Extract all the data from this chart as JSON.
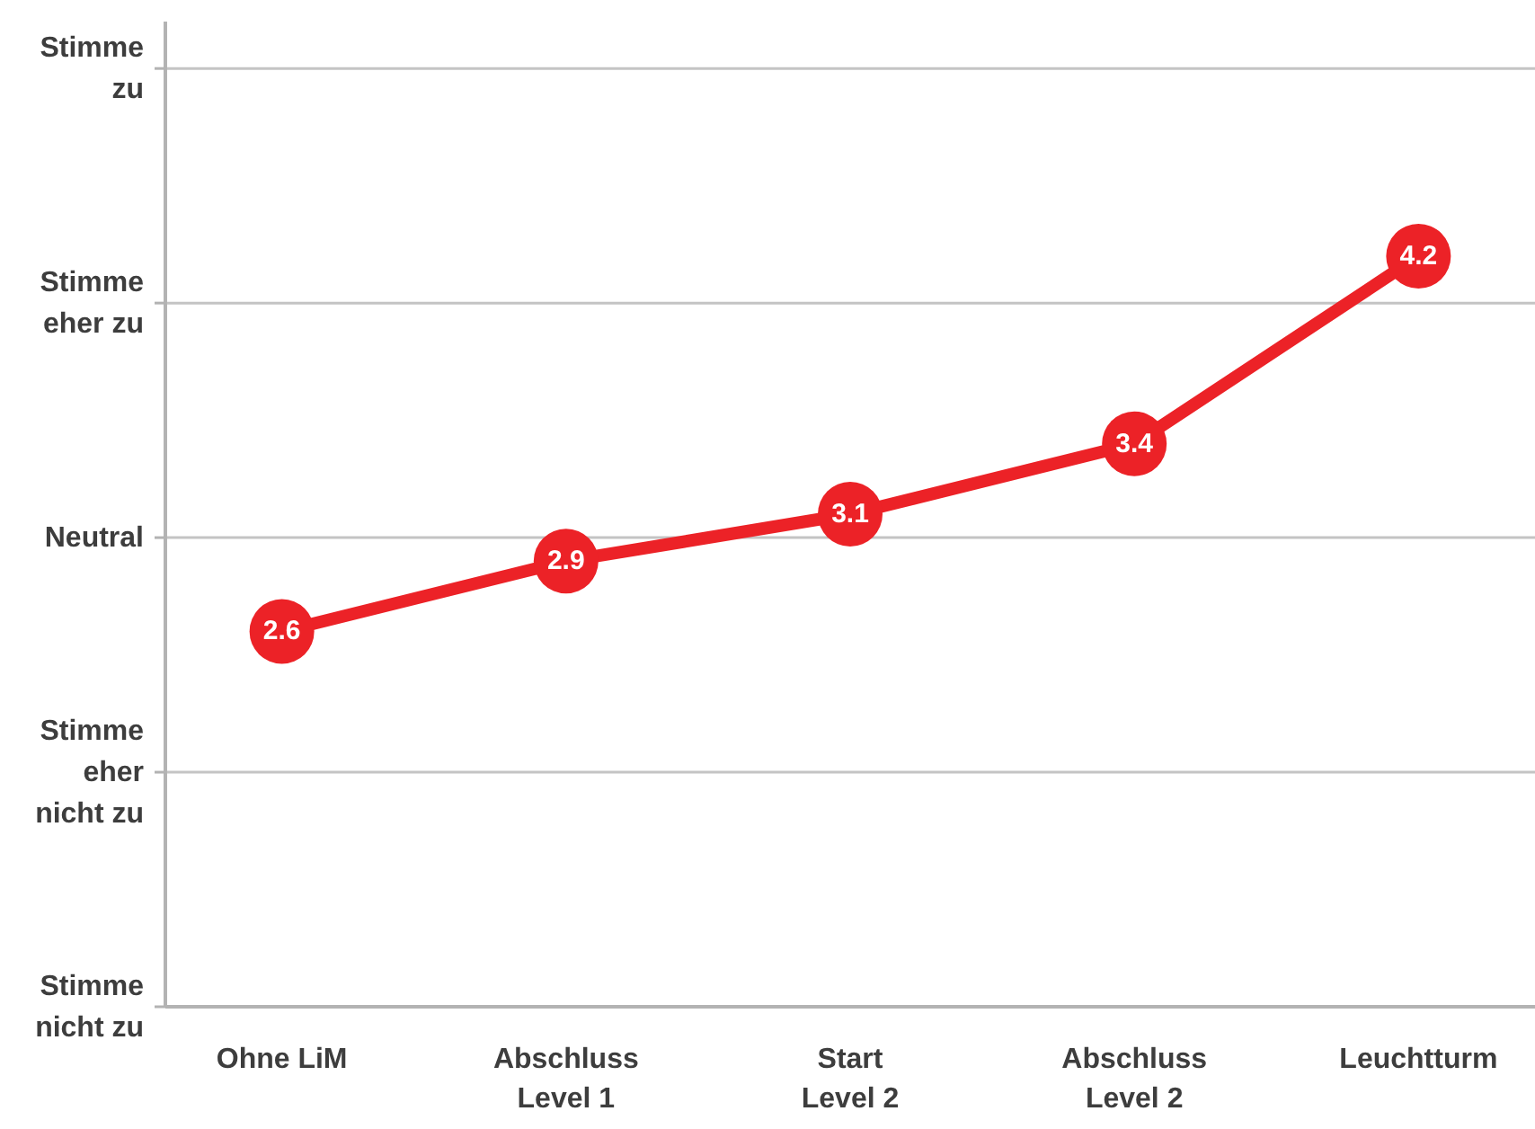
{
  "chart_data": {
    "type": "line",
    "categories": [
      "Ohne LiM",
      "Abschluss Level 1",
      "Start Level 2",
      "Abschluss Level 2",
      "Leuchtturm"
    ],
    "values": [
      2.6,
      2.9,
      3.1,
      3.4,
      4.2
    ],
    "color": "#ec2227",
    "ylim": [
      1,
      5.2
    ],
    "yticks": [
      {
        "value": 1,
        "label": null
      },
      {
        "value": 2,
        "label": null
      },
      {
        "value": 3,
        "label": null
      },
      {
        "value": 4,
        "label": null
      },
      {
        "value": 5,
        "label": null
      }
    ],
    "tick_labels": "x",
    "ref_lines": [
      {
        "axis": "y",
        "value": 1,
        "label": "Stimme nicht zu"
      },
      {
        "axis": "y",
        "value": 2,
        "label": "Stimme eher nicht zu"
      },
      {
        "axis": "y",
        "value": 3,
        "label": "Neutral"
      },
      {
        "axis": "y",
        "value": 4,
        "label": "Stimme eher zu"
      },
      {
        "axis": "y",
        "value": 5,
        "label": "Stimme zu"
      }
    ],
    "marker": "circle",
    "line_style": "solid",
    "data_labels": true
  }
}
